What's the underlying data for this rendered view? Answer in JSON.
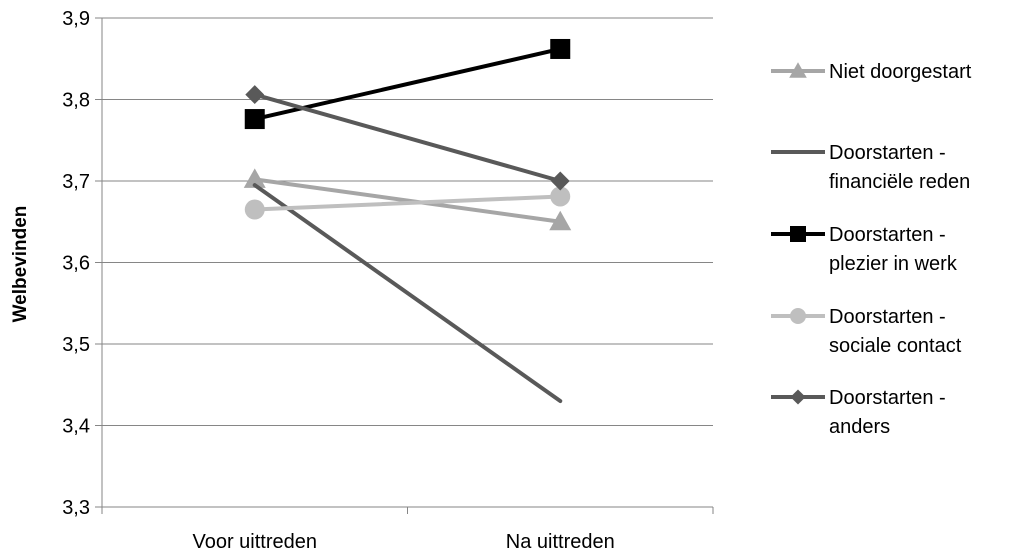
{
  "chart_data": {
    "type": "line",
    "title": "",
    "xlabel": "",
    "ylabel": "Welbevinden",
    "categories": [
      "Voor uittreden",
      "Na uittreden"
    ],
    "ylim": [
      3.3,
      3.9
    ],
    "yticks": [
      "3,3",
      "3,4",
      "3,5",
      "3,6",
      "3,7",
      "3,8",
      "3,9"
    ],
    "ytick_values": [
      3.3,
      3.4,
      3.5,
      3.6,
      3.7,
      3.8,
      3.9
    ],
    "grid": true,
    "legend_position": "right",
    "series": [
      {
        "name": "Niet doorgestart",
        "label_lines": [
          "Niet doorgestart"
        ],
        "values": [
          3.702,
          3.65
        ],
        "color": "#a6a6a6",
        "marker": "triangle"
      },
      {
        "name": "Doorstarten - financiële reden",
        "label_lines": [
          "Doorstarten -",
          "financiële reden"
        ],
        "values": [
          3.695,
          3.43
        ],
        "color": "#595959",
        "marker": "none"
      },
      {
        "name": "Doorstarten - plezier in werk",
        "label_lines": [
          "Doorstarten -",
          "plezier in werk"
        ],
        "values": [
          3.776,
          3.862
        ],
        "color": "#000000",
        "marker": "square"
      },
      {
        "name": "Doorstarten - sociale contact",
        "label_lines": [
          "Doorstarten -",
          "sociale contact"
        ],
        "values": [
          3.665,
          3.681
        ],
        "color": "#bfbfbf",
        "marker": "circle"
      },
      {
        "name": "Doorstarten - anders",
        "label_lines": [
          "Doorstarten -",
          "anders"
        ],
        "values": [
          3.806,
          3.7
        ],
        "color": "#595959",
        "marker": "diamond"
      }
    ]
  }
}
